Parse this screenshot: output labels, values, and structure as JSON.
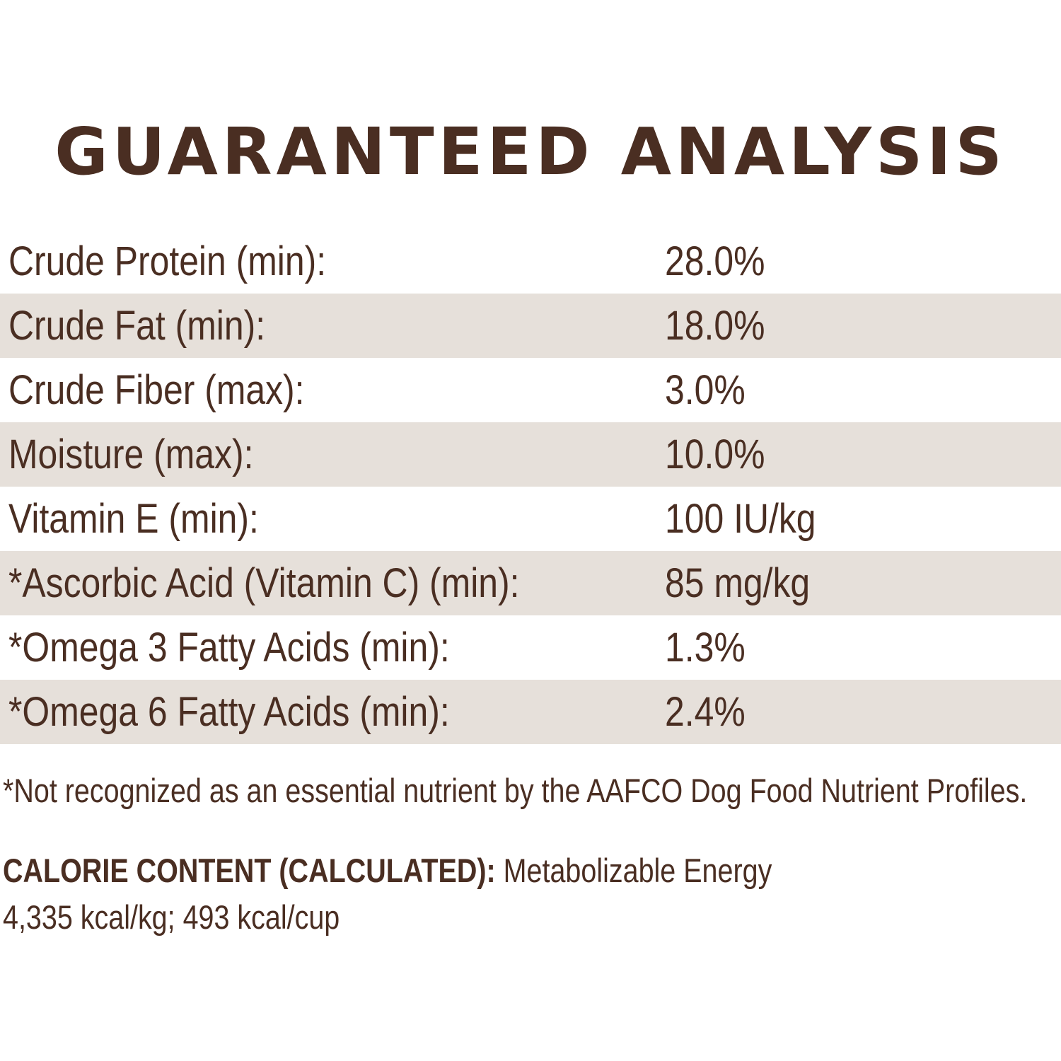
{
  "title": "GUARANTEED ANALYSIS",
  "rows": [
    {
      "label": "Crude Protein (min):",
      "value": "28.0%"
    },
    {
      "label": "Crude Fat (min):",
      "value": "18.0%"
    },
    {
      "label": "Crude Fiber (max):",
      "value": "3.0%"
    },
    {
      "label": "Moisture (max):",
      "value": "10.0%"
    },
    {
      "label": "Vitamin E (min):",
      "value": "100 IU/kg"
    },
    {
      "label": "*Ascorbic Acid (Vitamin C) (min):",
      "value": "85 mg/kg"
    },
    {
      "label": "*Omega 3 Fatty Acids (min):",
      "value": "1.3%"
    },
    {
      "label": "*Omega 6 Fatty Acids (min):",
      "value": "2.4%"
    }
  ],
  "footnote": "*Not recognized as an essential nutrient by the AAFCO Dog Food Nutrient Profiles.",
  "calorie": {
    "heading": "CALORIE CONTENT (CALCULATED):",
    "energy_label": " Metabolizable Energy",
    "values": "4,335 kcal/kg; 493 kcal/cup"
  },
  "colors": {
    "text": "#4a2e22",
    "row_shade": "#e6e0da"
  }
}
